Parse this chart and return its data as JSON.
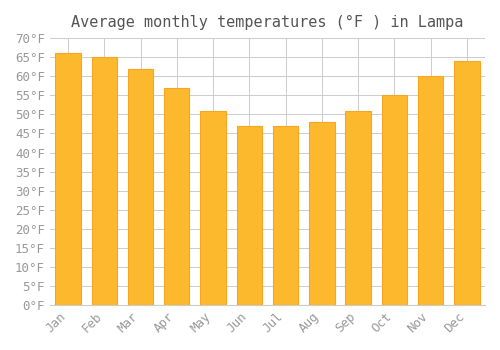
{
  "title": "Average monthly temperatures (°F ) in Lampa",
  "months": [
    "Jan",
    "Feb",
    "Mar",
    "Apr",
    "May",
    "Jun",
    "Jul",
    "Aug",
    "Sep",
    "Oct",
    "Nov",
    "Dec"
  ],
  "values": [
    66,
    65,
    62,
    57,
    51,
    47,
    47,
    48,
    51,
    55,
    60,
    64
  ],
  "bar_color_face": "#FDB92E",
  "bar_color_edge": "#F5A623",
  "ylim": [
    0,
    70
  ],
  "yticks": [
    0,
    5,
    10,
    15,
    20,
    25,
    30,
    35,
    40,
    45,
    50,
    55,
    60,
    65,
    70
  ],
  "ylabel_suffix": "°F",
  "background_color": "#FFFFFF",
  "grid_color": "#CCCCCC",
  "title_fontsize": 11,
  "tick_fontsize": 9,
  "font_family": "monospace"
}
